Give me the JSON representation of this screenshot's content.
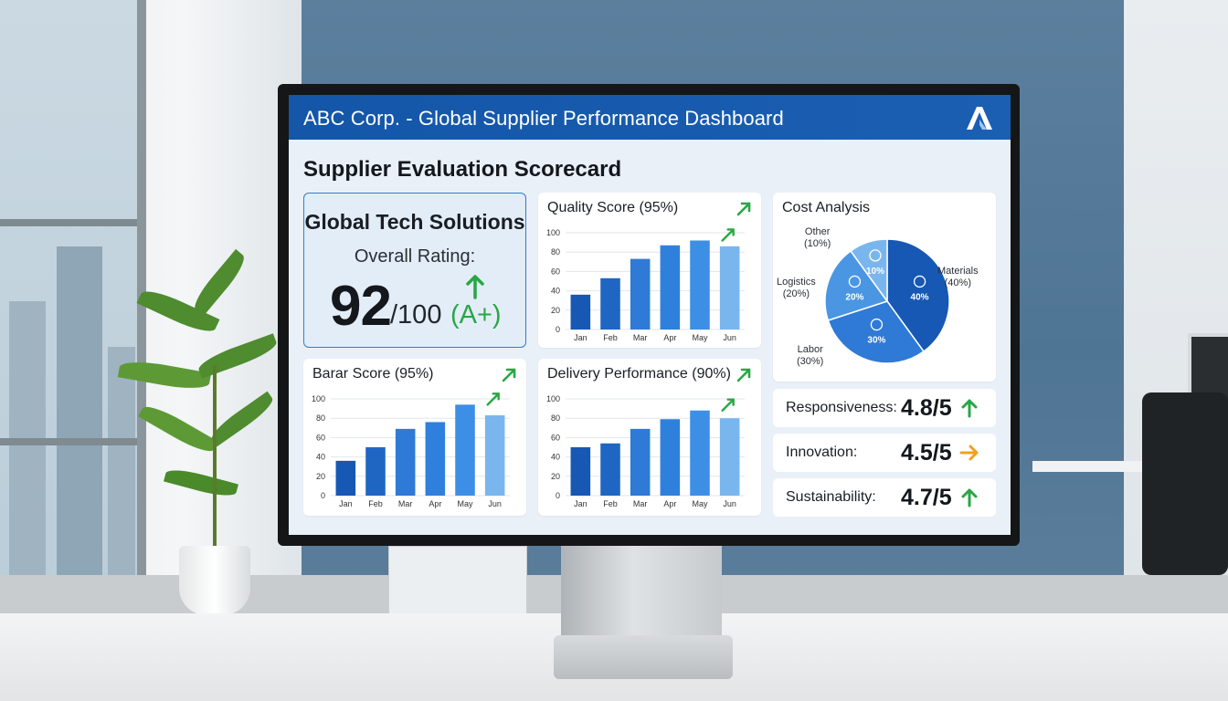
{
  "app": {
    "title": "ABC Corp. - Global Supplier Performance Dashboard"
  },
  "page": {
    "title": "Supplier Evaluation Scorecard"
  },
  "rating": {
    "supplier": "Global Tech Solutions",
    "label": "Overall Rating:",
    "score": "92",
    "max": "/100",
    "grade": "(A+)"
  },
  "cost": {
    "title": "Cost Analysis",
    "slices": [
      {
        "name": "Materials",
        "pct_label": "(40%)",
        "inner": "40%",
        "value": 40,
        "color": "#1658b3",
        "icon": "money-hand-icon"
      },
      {
        "name": "Labor",
        "pct_label": "(30%)",
        "inner": "30%",
        "value": 30,
        "color": "#2e7ad6",
        "icon": "worker-icon"
      },
      {
        "name": "Logistics",
        "pct_label": "(20%)",
        "inner": "20%",
        "value": 20,
        "color": "#4a96e3",
        "icon": "truck-icon"
      },
      {
        "name": "Other",
        "pct_label": "(10%)",
        "inner": "10%",
        "value": 10,
        "color": "#7ab6ee",
        "icon": "dollar-coin-icon"
      }
    ]
  },
  "metrics": [
    {
      "label": "Responsiveness:",
      "value": "4.8/5",
      "trend": "up",
      "color": "#28a745"
    },
    {
      "label": "Innovation:",
      "value": "4.5/5",
      "trend": "right",
      "color": "#f0a020"
    },
    {
      "label": "Sustainability:",
      "value": "4.7/5",
      "trend": "up",
      "color": "#28a745"
    }
  ],
  "colors": {
    "accent": "#1456a8",
    "up": "#28a745",
    "bar": [
      "#1658b3",
      "#1f66c2",
      "#2e7ad6",
      "#2f80dc",
      "#3d8fe6",
      "#7ab6ee"
    ]
  },
  "chart_data": [
    {
      "type": "bar",
      "title": "Quality Score (95%)",
      "categories": [
        "Jan",
        "Feb",
        "Mar",
        "Apr",
        "May",
        "Jun"
      ],
      "values": [
        36,
        53,
        73,
        87,
        92,
        86
      ],
      "ylim": [
        0,
        100
      ],
      "yticks": [
        0,
        20,
        40,
        60,
        80,
        100
      ],
      "xlabel": "",
      "ylabel": "",
      "grid": true
    },
    {
      "type": "bar",
      "title": "Barar Score (95%)",
      "categories": [
        "Jan",
        "Feb",
        "Mar",
        "Apr",
        "May",
        "Jun"
      ],
      "values": [
        36,
        50,
        69,
        76,
        94,
        83
      ],
      "ylim": [
        0,
        100
      ],
      "yticks": [
        0,
        20,
        40,
        60,
        80,
        100
      ],
      "xlabel": "",
      "ylabel": "",
      "grid": true
    },
    {
      "type": "bar",
      "title": "Delivery Performance (90%)",
      "categories": [
        "Jan",
        "Feb",
        "Mar",
        "Apr",
        "May",
        "Jun"
      ],
      "values": [
        50,
        54,
        69,
        79,
        88,
        80
      ],
      "ylim": [
        0,
        100
      ],
      "yticks": [
        0,
        20,
        40,
        60,
        80,
        100
      ],
      "xlabel": "",
      "ylabel": "",
      "grid": true
    },
    {
      "type": "pie",
      "title": "Cost Analysis",
      "categories": [
        "Materials",
        "Labor",
        "Logistics",
        "Other"
      ],
      "values": [
        40,
        30,
        20,
        10
      ]
    }
  ]
}
